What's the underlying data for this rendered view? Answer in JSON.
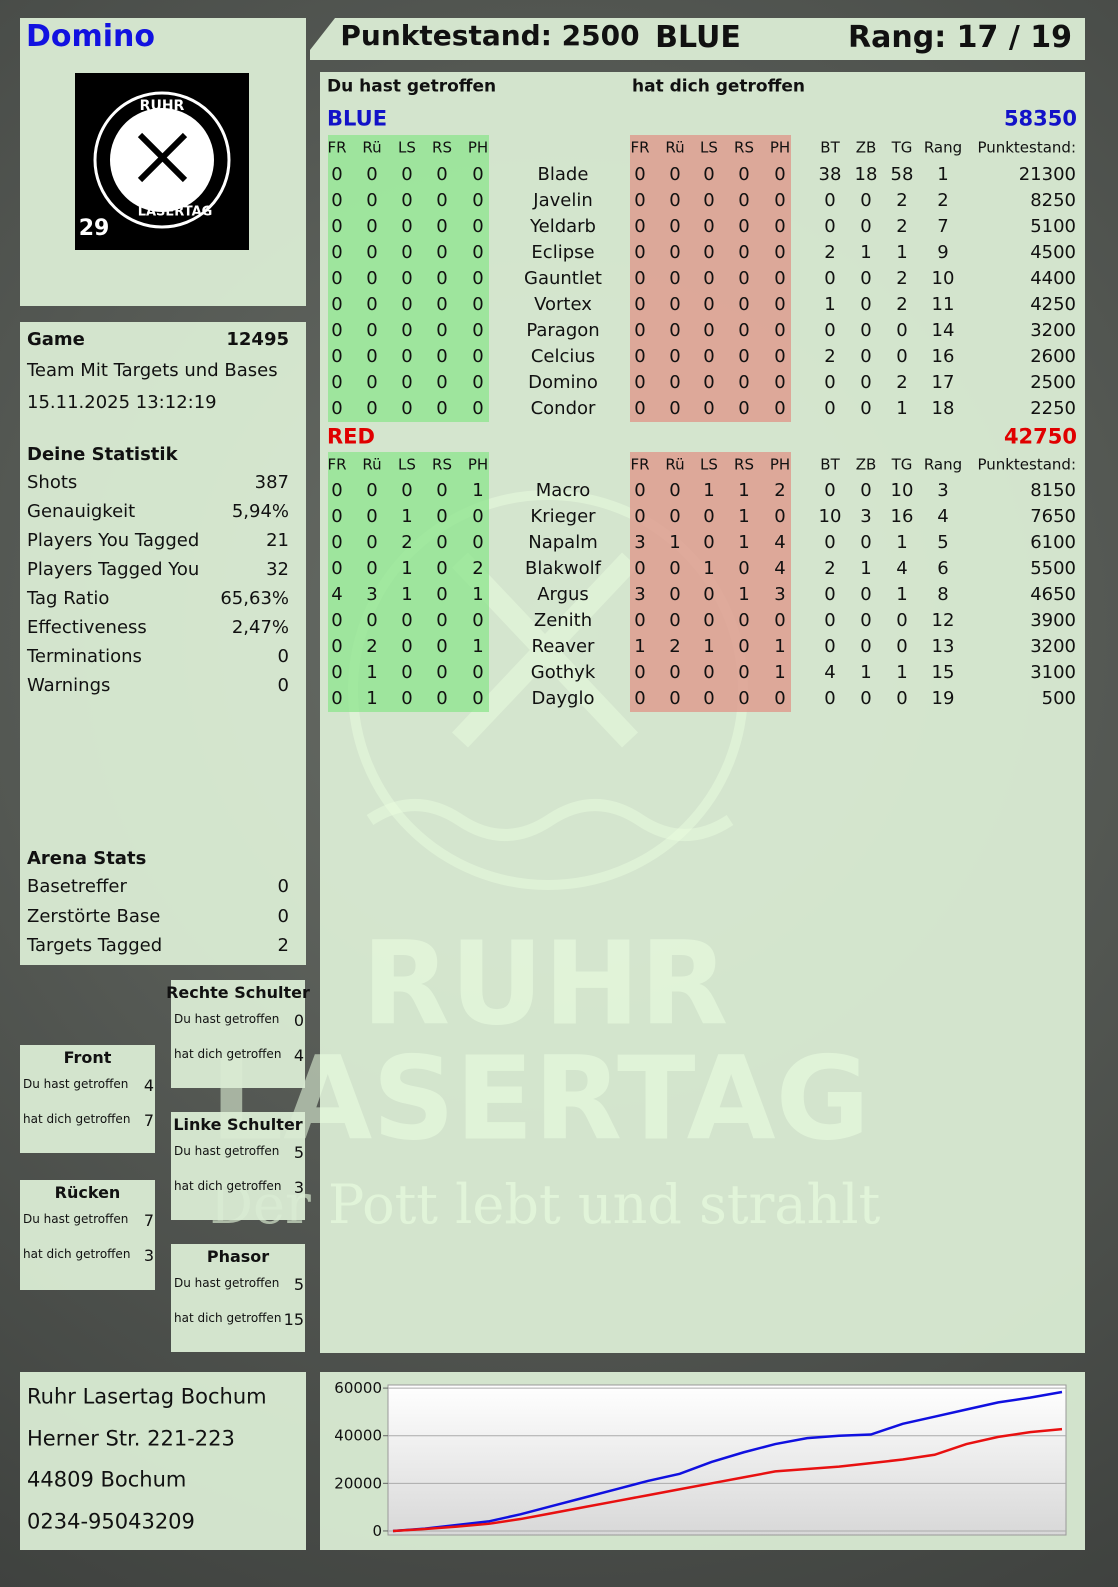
{
  "header": {
    "name": "Domino",
    "score": "Punktestand: 2500",
    "team": "BLUE",
    "rank": "Rang: 17 / 19"
  },
  "logo": {
    "top": "RUHR",
    "bottom": "LASERTAG",
    "badge": "29"
  },
  "game": {
    "label": "Game",
    "id": "12495",
    "mode": "Team Mit Targets und Bases",
    "date": "15.11.2025 13:12:19"
  },
  "stats": {
    "title": "Deine Statistik",
    "rows": [
      [
        "Shots",
        "387"
      ],
      [
        "Genauigkeit",
        "5,94%"
      ],
      [
        "Players You Tagged",
        "21"
      ],
      [
        "Players Tagged You",
        "32"
      ],
      [
        "Tag Ratio",
        "65,63%"
      ],
      [
        "Effectiveness",
        "2,47%"
      ],
      [
        "Terminations",
        "0"
      ],
      [
        "Warnings",
        "0"
      ]
    ]
  },
  "arena": {
    "title": "Arena Stats",
    "rows": [
      [
        "Basetreffer",
        "0"
      ],
      [
        "Zerstörte Base",
        "0"
      ],
      [
        "Targets Tagged",
        "2"
      ]
    ]
  },
  "zones": [
    {
      "name": "Rechte Schulter",
      "du_label": "Du hast getroffen",
      "du": 0,
      "hat_label": "hat dich getroffen",
      "hat": 4
    },
    {
      "name": "Front",
      "du_label": "Du hast getroffen",
      "du": 4,
      "hat_label": "hat dich getroffen",
      "hat": 7
    },
    {
      "name": "Linke Schulter",
      "du_label": "Du hast getroffen",
      "du": 5,
      "hat_label": "hat dich getroffen",
      "hat": 3
    },
    {
      "name": "Rücken",
      "du_label": "Du hast getroffen",
      "du": 7,
      "hat_label": "hat dich getroffen",
      "hat": 3
    },
    {
      "name": "Phasor",
      "du_label": "Du hast getroffen",
      "du": 5,
      "hat_label": "hat dich getroffen",
      "hat": 15
    }
  ],
  "address": [
    "Ruhr Lasertag Bochum",
    "Herner Str. 221-223",
    "44809 Bochum",
    "0234-95043209"
  ],
  "watermark": {
    "line1": "RUHR",
    "line2": "LASERTAG",
    "slogan": "Der Pott lebt und strahlt"
  },
  "table": {
    "you_title": "Du hast getroffen",
    "them_title": "hat dich getroffen",
    "teams": [
      {
        "name": "BLUE",
        "color": "#1212c8",
        "score": "58350",
        "you_cols": [
          "FR",
          "Rü",
          "LS",
          "RS",
          "PH"
        ],
        "them_cols": [
          "FR",
          "Rü",
          "LS",
          "RS",
          "PH"
        ],
        "stat_cols": [
          "BT",
          "ZB",
          "TG",
          "Rang",
          "Punktestand:"
        ],
        "players": [
          {
            "name": "Blade",
            "you": [
              0,
              0,
              0,
              0,
              0
            ],
            "them": [
              0,
              0,
              0,
              0,
              0
            ],
            "stats": [
              38,
              18,
              58,
              1,
              21300
            ]
          },
          {
            "name": "Javelin",
            "you": [
              0,
              0,
              0,
              0,
              0
            ],
            "them": [
              0,
              0,
              0,
              0,
              0
            ],
            "stats": [
              0,
              0,
              2,
              2,
              8250
            ]
          },
          {
            "name": "Yeldarb",
            "you": [
              0,
              0,
              0,
              0,
              0
            ],
            "them": [
              0,
              0,
              0,
              0,
              0
            ],
            "stats": [
              0,
              0,
              2,
              7,
              5100
            ]
          },
          {
            "name": "Eclipse",
            "you": [
              0,
              0,
              0,
              0,
              0
            ],
            "them": [
              0,
              0,
              0,
              0,
              0
            ],
            "stats": [
              2,
              1,
              1,
              9,
              4500
            ]
          },
          {
            "name": "Gauntlet",
            "you": [
              0,
              0,
              0,
              0,
              0
            ],
            "them": [
              0,
              0,
              0,
              0,
              0
            ],
            "stats": [
              0,
              0,
              2,
              10,
              4400
            ]
          },
          {
            "name": "Vortex",
            "you": [
              0,
              0,
              0,
              0,
              0
            ],
            "them": [
              0,
              0,
              0,
              0,
              0
            ],
            "stats": [
              1,
              0,
              2,
              11,
              4250
            ]
          },
          {
            "name": "Paragon",
            "you": [
              0,
              0,
              0,
              0,
              0
            ],
            "them": [
              0,
              0,
              0,
              0,
              0
            ],
            "stats": [
              0,
              0,
              0,
              14,
              3200
            ]
          },
          {
            "name": "Celcius",
            "you": [
              0,
              0,
              0,
              0,
              0
            ],
            "them": [
              0,
              0,
              0,
              0,
              0
            ],
            "stats": [
              2,
              0,
              0,
              16,
              2600
            ]
          },
          {
            "name": "Domino",
            "you": [
              0,
              0,
              0,
              0,
              0
            ],
            "them": [
              0,
              0,
              0,
              0,
              0
            ],
            "stats": [
              0,
              0,
              2,
              17,
              2500
            ]
          },
          {
            "name": "Condor",
            "you": [
              0,
              0,
              0,
              0,
              0
            ],
            "them": [
              0,
              0,
              0,
              0,
              0
            ],
            "stats": [
              0,
              0,
              1,
              18,
              2250
            ]
          }
        ]
      },
      {
        "name": "RED",
        "color": "#e00000",
        "score": "42750",
        "you_cols": [
          "FR",
          "Rü",
          "LS",
          "RS",
          "PH"
        ],
        "them_cols": [
          "FR",
          "Rü",
          "LS",
          "RS",
          "PH"
        ],
        "stat_cols": [
          "BT",
          "ZB",
          "TG",
          "Rang",
          "Punktestand:"
        ],
        "players": [
          {
            "name": "Macro",
            "you": [
              0,
              0,
              0,
              0,
              1
            ],
            "them": [
              0,
              0,
              1,
              1,
              2
            ],
            "stats": [
              0,
              0,
              10,
              3,
              8150
            ]
          },
          {
            "name": "Krieger",
            "you": [
              0,
              0,
              1,
              0,
              0
            ],
            "them": [
              0,
              0,
              0,
              1,
              0
            ],
            "stats": [
              10,
              3,
              16,
              4,
              7650
            ]
          },
          {
            "name": "Napalm",
            "you": [
              0,
              0,
              2,
              0,
              0
            ],
            "them": [
              3,
              1,
              0,
              1,
              4
            ],
            "stats": [
              0,
              0,
              1,
              5,
              6100
            ]
          },
          {
            "name": "Blakwolf",
            "you": [
              0,
              0,
              1,
              0,
              2
            ],
            "them": [
              0,
              0,
              1,
              0,
              4
            ],
            "stats": [
              2,
              1,
              4,
              6,
              5500
            ]
          },
          {
            "name": "Argus",
            "you": [
              4,
              3,
              1,
              0,
              1
            ],
            "them": [
              3,
              0,
              0,
              1,
              3
            ],
            "stats": [
              0,
              0,
              1,
              8,
              4650
            ]
          },
          {
            "name": "Zenith",
            "you": [
              0,
              0,
              0,
              0,
              0
            ],
            "them": [
              0,
              0,
              0,
              0,
              0
            ],
            "stats": [
              0,
              0,
              0,
              12,
              3900
            ]
          },
          {
            "name": "Reaver",
            "you": [
              0,
              2,
              0,
              0,
              1
            ],
            "them": [
              1,
              2,
              1,
              0,
              1
            ],
            "stats": [
              0,
              0,
              0,
              13,
              3200
            ]
          },
          {
            "name": "Gothyk",
            "you": [
              0,
              1,
              0,
              0,
              0
            ],
            "them": [
              0,
              0,
              0,
              0,
              1
            ],
            "stats": [
              4,
              1,
              1,
              15,
              3100
            ]
          },
          {
            "name": "Dayglo",
            "you": [
              0,
              1,
              0,
              0,
              0
            ],
            "them": [
              0,
              0,
              0,
              0,
              0
            ],
            "stats": [
              0,
              0,
              0,
              19,
              500
            ]
          }
        ]
      }
    ]
  },
  "chart_data": {
    "type": "line",
    "ylim": [
      -1700,
      61300
    ],
    "yticks": [
      0,
      20000,
      40000,
      60000
    ],
    "grid": true,
    "series": [
      {
        "color": "#1010e0",
        "values": [
          0,
          1000,
          2500,
          4000,
          7000,
          10500,
          14000,
          17500,
          21000,
          24000,
          29000,
          33000,
          36500,
          39000,
          40000,
          40500,
          45000,
          48000,
          51000,
          54000,
          56000,
          58350
        ]
      },
      {
        "color": "#e81010",
        "values": [
          0,
          800,
          1800,
          3000,
          5000,
          7500,
          10000,
          12500,
          15000,
          17500,
          20000,
          22500,
          25000,
          26000,
          27000,
          28500,
          30000,
          32000,
          36500,
          39500,
          41500,
          42750
        ]
      }
    ]
  }
}
